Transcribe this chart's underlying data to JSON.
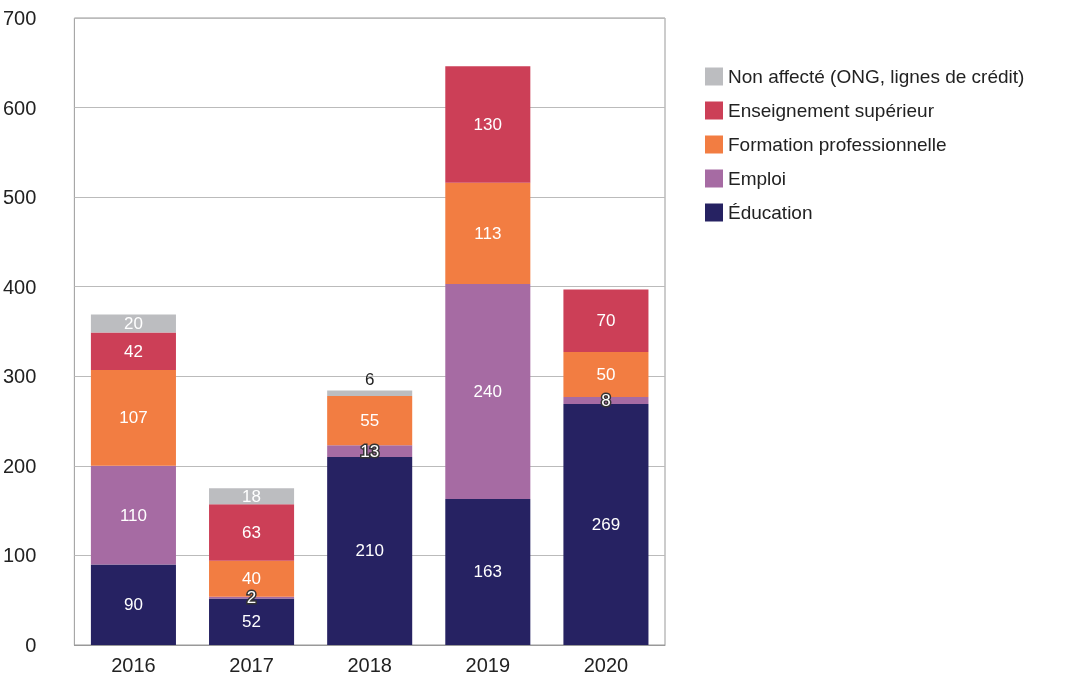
{
  "chart_data": {
    "type": "bar",
    "stacked": true,
    "categories": [
      "2016",
      "2017",
      "2018",
      "2019",
      "2020"
    ],
    "series": [
      {
        "name": "Éducation",
        "color": "#262262",
        "values": [
          90,
          52,
          210,
          163,
          269
        ]
      },
      {
        "name": "Emploi",
        "color": "#a66ba3",
        "values": [
          110,
          2,
          13,
          240,
          8
        ]
      },
      {
        "name": "Formation professionnelle",
        "color": "#f27d42",
        "values": [
          107,
          40,
          55,
          113,
          50
        ]
      },
      {
        "name": "Enseignement supérieur",
        "color": "#cc3f57",
        "values": [
          42,
          63,
          null,
          130,
          70
        ]
      },
      {
        "name": "Non affecté (ONG, lignes de crédit)",
        "color": "#bcbdc0",
        "values": [
          20,
          18,
          6,
          null,
          null
        ]
      }
    ],
    "ylim": [
      0,
      700
    ],
    "yticks": [
      0,
      100,
      200,
      300,
      400,
      500,
      600,
      700
    ],
    "grid": "y",
    "legend": "right",
    "data_labels": true
  }
}
